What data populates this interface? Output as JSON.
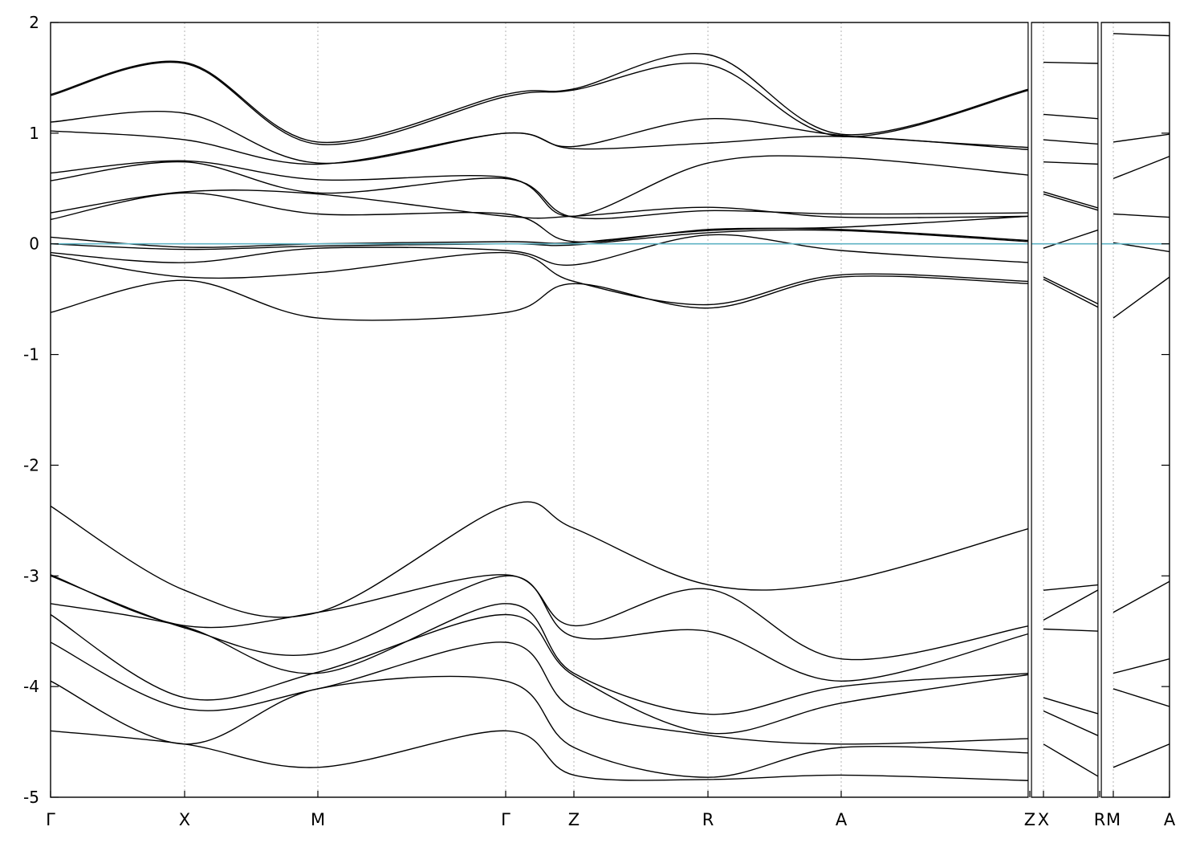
{
  "chart_data": {
    "type": "line",
    "title": "",
    "xlabel": "",
    "ylabel": "",
    "ylim": [
      -5,
      2
    ],
    "yticks": [
      -5,
      -4,
      -3,
      -2,
      -1,
      0,
      1,
      2
    ],
    "ytick_labels": [
      "-5",
      "-4",
      "-3",
      "-2",
      "-1",
      "0",
      "1",
      "2"
    ],
    "grid": false,
    "xlim": [
      0,
      1394
    ],
    "kpoints": [
      {
        "label": "Γ",
        "x": 0
      },
      {
        "label": "X",
        "x": 167
      },
      {
        "label": "M",
        "x": 333
      },
      {
        "label": "Γ",
        "x": 567
      },
      {
        "label": "Z",
        "x": 652
      },
      {
        "label": "R",
        "x": 819
      },
      {
        "label": "A",
        "x": 985
      },
      {
        "label": "Z",
        "x": 1220
      },
      {
        "label": "X",
        "x": 1237
      },
      {
        "label": "R",
        "x": 1307
      },
      {
        "label": "M",
        "x": 1324
      },
      {
        "label": "A",
        "x": 1394
      }
    ],
    "path_breaks": [
      1220,
      1307
    ],
    "fermi_level": 0,
    "fermi_color": "#5fb3c4",
    "line_color": "#000000",
    "series": [
      {
        "x": [
          0,
          167,
          333,
          567,
          652,
          819,
          985,
          1220
        ],
        "y": [
          1.35,
          1.64,
          0.92,
          1.35,
          1.4,
          1.71,
          0.99,
          1.4
        ]
      },
      {
        "x": [
          0,
          167,
          333,
          567,
          652,
          819,
          985,
          1220
        ],
        "y": [
          1.34,
          1.63,
          0.9,
          1.33,
          1.39,
          1.62,
          0.97,
          1.39
        ]
      },
      {
        "x": [
          0,
          167,
          333,
          567,
          652,
          819,
          985,
          1220
        ],
        "y": [
          1.1,
          1.18,
          0.73,
          1.0,
          0.88,
          1.13,
          0.98,
          0.87
        ]
      },
      {
        "x": [
          0,
          167,
          333,
          567,
          652,
          819,
          985,
          1220
        ],
        "y": [
          1.02,
          0.94,
          0.72,
          1.0,
          0.86,
          0.91,
          0.97,
          0.85
        ]
      },
      {
        "x": [
          0,
          167,
          333,
          567,
          652,
          819,
          985,
          1220
        ],
        "y": [
          0.64,
          0.75,
          0.58,
          0.6,
          0.25,
          0.73,
          0.78,
          0.62
        ]
      },
      {
        "x": [
          0,
          167,
          333,
          567,
          652,
          819,
          985,
          1220
        ],
        "y": [
          0.57,
          0.74,
          0.46,
          0.59,
          0.24,
          0.3,
          0.27,
          0.28
        ]
      },
      {
        "x": [
          0,
          167,
          333,
          567,
          652,
          819,
          985,
          1220
        ],
        "y": [
          0.28,
          0.47,
          0.45,
          0.25,
          0.25,
          0.33,
          0.24,
          0.25
        ]
      },
      {
        "x": [
          0,
          167,
          333,
          567,
          652,
          819,
          985,
          1220
        ],
        "y": [
          0.22,
          0.46,
          0.27,
          0.27,
          0.02,
          0.13,
          0.15,
          0.25
        ]
      },
      {
        "x": [
          0,
          167,
          333,
          567,
          652,
          819,
          985,
          1220
        ],
        "y": [
          0.06,
          -0.03,
          0.0,
          0.02,
          0.01,
          0.12,
          0.13,
          0.03
        ]
      },
      {
        "x": [
          0,
          167,
          333,
          567,
          652,
          819,
          985,
          1220
        ],
        "y": [
          0.0,
          -0.05,
          -0.02,
          0.0,
          -0.01,
          0.1,
          0.12,
          0.02
        ]
      },
      {
        "x": [
          0,
          167,
          333,
          567,
          652,
          819,
          985,
          1220
        ],
        "y": [
          -0.08,
          -0.17,
          -0.04,
          -0.06,
          -0.19,
          0.08,
          -0.06,
          -0.17
        ]
      },
      {
        "x": [
          0,
          167,
          333,
          567,
          652,
          819,
          985,
          1220
        ],
        "y": [
          -0.1,
          -0.3,
          -0.26,
          -0.08,
          -0.34,
          -0.55,
          -0.28,
          -0.34
        ]
      },
      {
        "x": [
          0,
          167,
          333,
          567,
          652,
          819,
          985,
          1220
        ],
        "y": [
          -0.62,
          -0.33,
          -0.67,
          -0.62,
          -0.36,
          -0.58,
          -0.3,
          -0.36
        ]
      },
      {
        "x": [
          0,
          167,
          333,
          567,
          652,
          819,
          985,
          1220
        ],
        "y": [
          -2.37,
          -3.13,
          -3.33,
          -2.37,
          -2.57,
          -3.08,
          -3.05,
          -2.57
        ]
      },
      {
        "x": [
          0,
          167,
          333,
          567,
          652,
          819,
          985,
          1220
        ],
        "y": [
          -2.99,
          -3.45,
          -3.33,
          -2.99,
          -3.45,
          -3.12,
          -3.75,
          -3.45
        ]
      },
      {
        "x": [
          0,
          167,
          333,
          567,
          652,
          819,
          985,
          1220
        ],
        "y": [
          -3.0,
          -3.47,
          -3.7,
          -3.0,
          -3.55,
          -3.5,
          -3.95,
          -3.52
        ]
      },
      {
        "x": [
          0,
          167,
          333,
          567,
          652,
          819,
          985,
          1220
        ],
        "y": [
          -3.25,
          -3.46,
          -3.88,
          -3.25,
          -3.88,
          -4.25,
          -4.0,
          -3.88
        ]
      },
      {
        "x": [
          0,
          167,
          333,
          567,
          652,
          819,
          985,
          1220
        ],
        "y": [
          -3.35,
          -4.1,
          -3.87,
          -3.35,
          -3.9,
          -4.42,
          -4.15,
          -3.89
        ]
      },
      {
        "x": [
          0,
          167,
          333,
          567,
          652,
          819,
          985,
          1220
        ],
        "y": [
          -3.6,
          -4.2,
          -4.02,
          -3.6,
          -4.2,
          -4.44,
          -4.52,
          -4.47
        ]
      },
      {
        "x": [
          0,
          167,
          333,
          567,
          652,
          819,
          985,
          1220
        ],
        "y": [
          -3.95,
          -4.52,
          -4.02,
          -3.95,
          -4.55,
          -4.82,
          -4.55,
          -4.6
        ]
      },
      {
        "x": [
          0,
          167,
          333,
          567,
          652,
          819,
          985,
          1220
        ],
        "y": [
          -4.4,
          -4.52,
          -4.73,
          -4.4,
          -4.8,
          -4.84,
          -4.8,
          -4.85
        ]
      },
      {
        "x": [
          1237,
          1307
        ],
        "y": [
          1.64,
          1.63
        ]
      },
      {
        "x": [
          1237,
          1307
        ],
        "y": [
          1.17,
          1.13
        ]
      },
      {
        "x": [
          1237,
          1307
        ],
        "y": [
          0.94,
          0.9
        ]
      },
      {
        "x": [
          1237,
          1307
        ],
        "y": [
          0.74,
          0.72
        ]
      },
      {
        "x": [
          1237,
          1307
        ],
        "y": [
          0.47,
          0.32
        ]
      },
      {
        "x": [
          1237,
          1307
        ],
        "y": [
          0.45,
          0.3
        ]
      },
      {
        "x": [
          1237,
          1307
        ],
        "y": [
          -0.04,
          0.13
        ]
      },
      {
        "x": [
          1237,
          1307
        ],
        "y": [
          -0.3,
          -0.55
        ]
      },
      {
        "x": [
          1237,
          1307
        ],
        "y": [
          -0.32,
          -0.58
        ]
      },
      {
        "x": [
          1237,
          1307
        ],
        "y": [
          -3.13,
          -3.08
        ]
      },
      {
        "x": [
          1237,
          1307
        ],
        "y": [
          -3.4,
          -3.12
        ]
      },
      {
        "x": [
          1237,
          1307
        ],
        "y": [
          -3.48,
          -3.5
        ]
      },
      {
        "x": [
          1237,
          1307
        ],
        "y": [
          -4.1,
          -4.25
        ]
      },
      {
        "x": [
          1237,
          1307
        ],
        "y": [
          -4.22,
          -4.45
        ]
      },
      {
        "x": [
          1237,
          1307
        ],
        "y": [
          -4.52,
          -4.82
        ]
      },
      {
        "x": [
          1324,
          1394
        ],
        "y": [
          1.9,
          1.88
        ]
      },
      {
        "x": [
          1324,
          1394
        ],
        "y": [
          0.92,
          0.99
        ]
      },
      {
        "x": [
          1324,
          1394
        ],
        "y": [
          0.59,
          0.79
        ]
      },
      {
        "x": [
          1324,
          1394
        ],
        "y": [
          0.27,
          0.24
        ]
      },
      {
        "x": [
          1324,
          1394
        ],
        "y": [
          0.01,
          -0.07
        ]
      },
      {
        "x": [
          1324,
          1394
        ],
        "y": [
          -0.67,
          -0.3
        ]
      },
      {
        "x": [
          1324,
          1394
        ],
        "y": [
          -3.33,
          -3.05
        ]
      },
      {
        "x": [
          1324,
          1394
        ],
        "y": [
          -3.88,
          -3.75
        ]
      },
      {
        "x": [
          1324,
          1394
        ],
        "y": [
          -4.02,
          -4.18
        ]
      },
      {
        "x": [
          1324,
          1394
        ],
        "y": [
          -4.73,
          -4.52
        ]
      }
    ]
  }
}
